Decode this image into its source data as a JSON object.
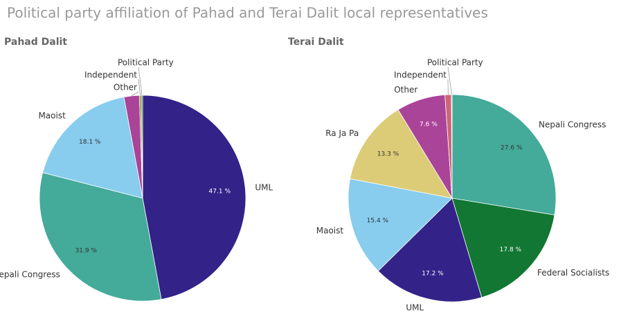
{
  "title": "Political party affiliation of Pahad and Terai Dalit local representatives",
  "chart_data": [
    {
      "type": "pie",
      "title": "Pahad Dalit",
      "categories": [
        "UML",
        "Nepali Congress",
        "Maoist",
        "Other",
        "Independent",
        "Political Party"
      ],
      "values": [
        47.1,
        31.9,
        18.1,
        2.4,
        0.3,
        0.2
      ],
      "value_labels": [
        "47.1 %",
        "31.9 %",
        "18.1 %",
        null,
        null,
        null
      ],
      "colors": [
        "#332288",
        "#44aa99",
        "#88ccee",
        "#aa4499",
        "#999933",
        "#117733"
      ]
    },
    {
      "type": "pie",
      "title": "Terai Dalit",
      "categories": [
        "Nepali Congress",
        "Federal Socialists",
        "UML",
        "Maoist",
        "Ra Ja Pa",
        "Other",
        "Independent",
        "Political Party"
      ],
      "values": [
        27.6,
        17.8,
        17.2,
        15.4,
        13.3,
        7.6,
        1.0,
        0.1
      ],
      "value_labels": [
        "27.6 %",
        "17.8 %",
        "17.2 %",
        "15.4 %",
        "13.3 %",
        "7.6 %",
        null,
        null
      ],
      "colors": [
        "#44aa99",
        "#117733",
        "#332288",
        "#88ccee",
        "#ddcc77",
        "#aa4499",
        "#cc6677",
        "#882255"
      ]
    }
  ]
}
